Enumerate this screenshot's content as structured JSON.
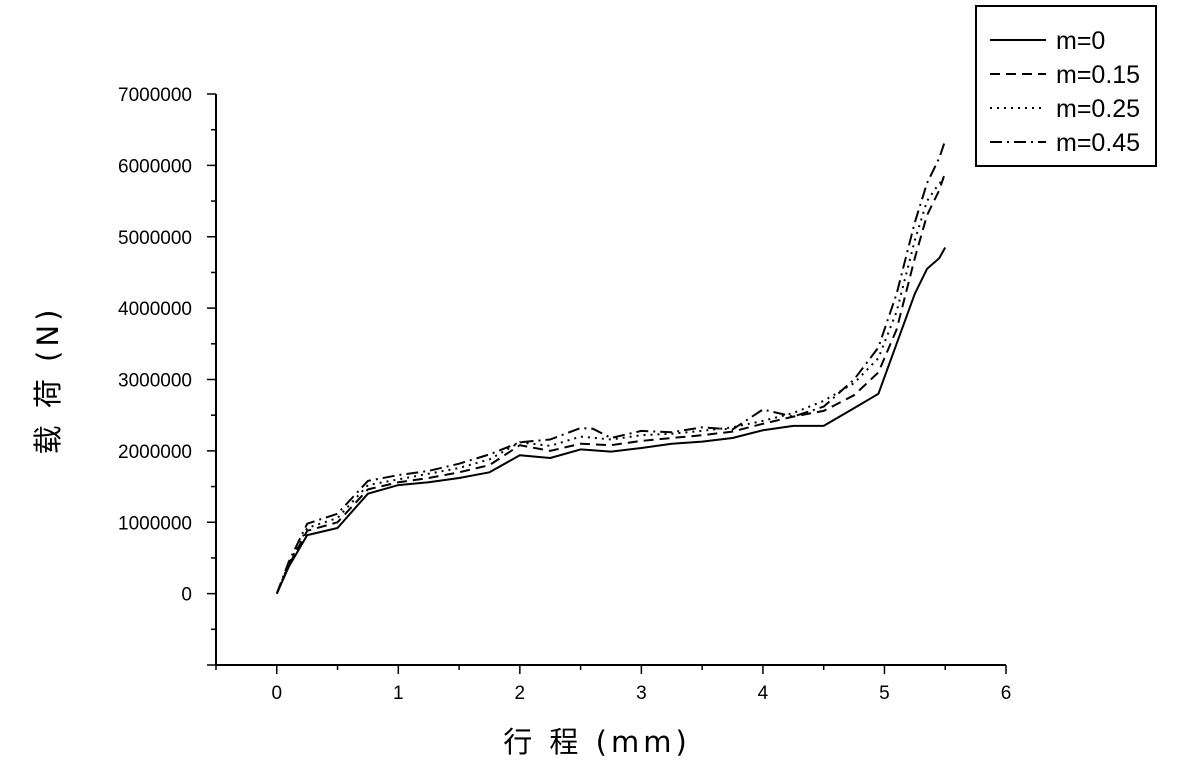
{
  "chart_data": {
    "type": "line",
    "xlabel": "行 程 (mm)",
    "ylabel": "载 荷 (N)",
    "xlim": [
      -0.5,
      6
    ],
    "ylim": [
      -1000000,
      7000000
    ],
    "xticks": [
      0,
      1,
      2,
      3,
      4,
      5,
      6
    ],
    "yticks": [
      0,
      1000000,
      2000000,
      3000000,
      4000000,
      5000000,
      6000000,
      7000000
    ],
    "grid": false,
    "legend_position": "top-right",
    "series": [
      {
        "name": "m=0",
        "style": "solid",
        "points": [
          [
            0,
            0
          ],
          [
            0.1,
            380000
          ],
          [
            0.25,
            820000
          ],
          [
            0.5,
            920000
          ],
          [
            0.75,
            1400000
          ],
          [
            1.0,
            1520000
          ],
          [
            1.25,
            1560000
          ],
          [
            1.5,
            1620000
          ],
          [
            1.75,
            1700000
          ],
          [
            2.0,
            1940000
          ],
          [
            2.25,
            1900000
          ],
          [
            2.5,
            2020000
          ],
          [
            2.75,
            1990000
          ],
          [
            3.0,
            2040000
          ],
          [
            3.25,
            2100000
          ],
          [
            3.5,
            2130000
          ],
          [
            3.75,
            2180000
          ],
          [
            4.0,
            2290000
          ],
          [
            4.25,
            2350000
          ],
          [
            4.5,
            2350000
          ],
          [
            4.75,
            2600000
          ],
          [
            4.95,
            2800000
          ],
          [
            5.1,
            3500000
          ],
          [
            5.25,
            4200000
          ],
          [
            5.35,
            4550000
          ],
          [
            5.45,
            4700000
          ],
          [
            5.5,
            4850000
          ]
        ]
      },
      {
        "name": "m=0.15",
        "style": "dashed",
        "points": [
          [
            0,
            0
          ],
          [
            0.1,
            400000
          ],
          [
            0.25,
            880000
          ],
          [
            0.5,
            1000000
          ],
          [
            0.75,
            1460000
          ],
          [
            1.0,
            1560000
          ],
          [
            1.25,
            1620000
          ],
          [
            1.5,
            1700000
          ],
          [
            1.75,
            1800000
          ],
          [
            2.0,
            2080000
          ],
          [
            2.25,
            2000000
          ],
          [
            2.5,
            2100000
          ],
          [
            2.75,
            2080000
          ],
          [
            3.0,
            2140000
          ],
          [
            3.25,
            2180000
          ],
          [
            3.5,
            2220000
          ],
          [
            3.75,
            2270000
          ],
          [
            4.0,
            2380000
          ],
          [
            4.25,
            2480000
          ],
          [
            4.5,
            2560000
          ],
          [
            4.75,
            2780000
          ],
          [
            4.95,
            3100000
          ],
          [
            5.1,
            3700000
          ],
          [
            5.25,
            4700000
          ],
          [
            5.35,
            5300000
          ],
          [
            5.45,
            5650000
          ],
          [
            5.5,
            5900000
          ]
        ]
      },
      {
        "name": "m=0.25",
        "style": "dotted",
        "points": [
          [
            0,
            0
          ],
          [
            0.1,
            420000
          ],
          [
            0.25,
            920000
          ],
          [
            0.5,
            1060000
          ],
          [
            0.75,
            1520000
          ],
          [
            1.0,
            1600000
          ],
          [
            1.25,
            1680000
          ],
          [
            1.5,
            1760000
          ],
          [
            1.75,
            1880000
          ],
          [
            2.0,
            2120000
          ],
          [
            2.25,
            2070000
          ],
          [
            2.5,
            2200000
          ],
          [
            2.75,
            2160000
          ],
          [
            3.0,
            2220000
          ],
          [
            3.25,
            2240000
          ],
          [
            3.5,
            2280000
          ],
          [
            3.75,
            2330000
          ],
          [
            4.0,
            2420000
          ],
          [
            4.25,
            2530000
          ],
          [
            4.5,
            2700000
          ],
          [
            4.75,
            2950000
          ],
          [
            4.95,
            3300000
          ],
          [
            5.1,
            3950000
          ],
          [
            5.25,
            4950000
          ],
          [
            5.35,
            5500000
          ],
          [
            5.45,
            5750000
          ],
          [
            5.5,
            5800000
          ]
        ]
      },
      {
        "name": "m=0.45",
        "style": "dashdot",
        "points": [
          [
            0,
            0
          ],
          [
            0.1,
            450000
          ],
          [
            0.25,
            980000
          ],
          [
            0.5,
            1120000
          ],
          [
            0.75,
            1580000
          ],
          [
            1.0,
            1660000
          ],
          [
            1.25,
            1720000
          ],
          [
            1.5,
            1820000
          ],
          [
            1.75,
            1950000
          ],
          [
            2.0,
            2120000
          ],
          [
            2.25,
            2160000
          ],
          [
            2.5,
            2320000
          ],
          [
            2.6,
            2310000
          ],
          [
            2.75,
            2180000
          ],
          [
            3.0,
            2280000
          ],
          [
            3.25,
            2260000
          ],
          [
            3.5,
            2330000
          ],
          [
            3.75,
            2300000
          ],
          [
            4.0,
            2580000
          ],
          [
            4.25,
            2480000
          ],
          [
            4.5,
            2620000
          ],
          [
            4.75,
            3000000
          ],
          [
            4.95,
            3450000
          ],
          [
            5.1,
            4200000
          ],
          [
            5.25,
            5200000
          ],
          [
            5.35,
            5750000
          ],
          [
            5.45,
            6100000
          ],
          [
            5.5,
            6350000
          ]
        ]
      }
    ]
  }
}
